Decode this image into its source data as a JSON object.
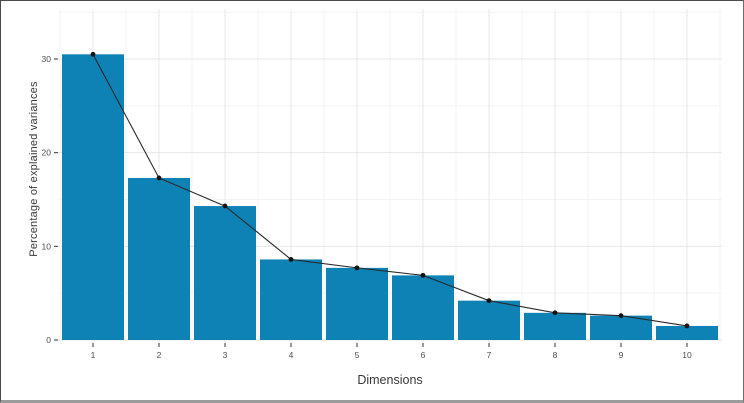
{
  "chart_data": {
    "type": "bar",
    "line_overlay": true,
    "title": "",
    "xlabel": "Dimensions",
    "ylabel": "Percentage of explained variances",
    "categories": [
      "1",
      "2",
      "3",
      "4",
      "5",
      "6",
      "7",
      "8",
      "9",
      "10"
    ],
    "values": [
      30.5,
      17.3,
      14.3,
      8.6,
      7.7,
      6.9,
      4.2,
      2.9,
      2.6,
      1.5
    ],
    "series": [
      {
        "name": "explained-variance-bars",
        "values": [
          30.5,
          17.3,
          14.3,
          8.6,
          7.7,
          6.9,
          4.2,
          2.9,
          2.6,
          1.5
        ]
      },
      {
        "name": "scree-line",
        "values": [
          30.5,
          17.3,
          14.3,
          8.6,
          7.7,
          6.9,
          4.2,
          2.9,
          2.6,
          1.5
        ]
      }
    ],
    "yticks": [
      0,
      10,
      20,
      30
    ],
    "yticks_minor": [
      5,
      15,
      25,
      35
    ],
    "ylim": [
      0,
      35.3
    ],
    "grid": "major+minor",
    "legend": "none",
    "bar_color": "#0e81b5",
    "line_color": "#2a2a2a",
    "point_color": "#111111",
    "major_grid_color": "#e7e7e7",
    "minor_grid_color": "#f3f3f3",
    "tick_mark_color": "#333333",
    "tick_label_color": "#4d4d4d",
    "axis_title_color": "#383838",
    "panel_background": "#ffffff"
  }
}
